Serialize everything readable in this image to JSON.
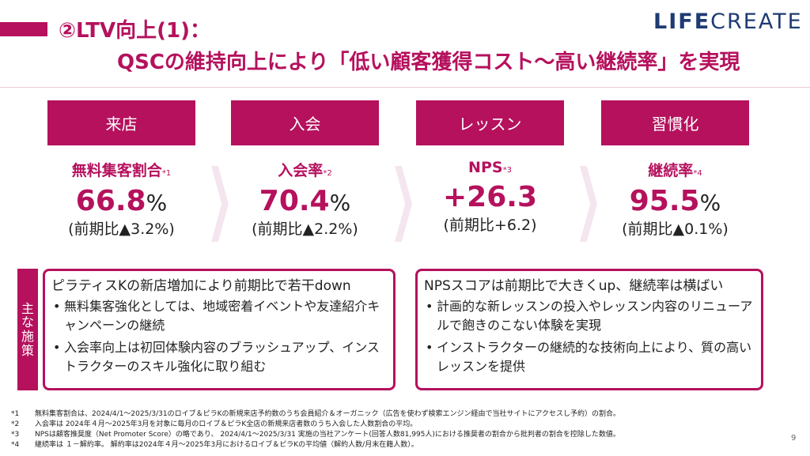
{
  "header": {
    "title_line1": "②LTV向上(1)：",
    "title_line2": "QSCの維持向上により「低い顧客獲得コスト〜高い継続率」を実現",
    "logo_bold": "LIFE",
    "logo_thin": "CREATE"
  },
  "stages": [
    {
      "head": "来店",
      "metric": "無料集客割合",
      "note": "*1",
      "value": "66.8",
      "unit": "%",
      "change": "(前期比▲3.2%)"
    },
    {
      "head": "入会",
      "metric": "入会率",
      "note": "*2",
      "value": "70.4",
      "unit": "%",
      "change": "(前期比▲2.2%)"
    },
    {
      "head": "レッスン",
      "metric": "NPS",
      "note": "*3",
      "value": "+26.3",
      "unit": "",
      "change": "(前期比+6.2)"
    },
    {
      "head": "習慣化",
      "metric": "継続率",
      "note": "*4",
      "value": "95.5",
      "unit": "%",
      "change": "(前期比▲0.1%)"
    }
  ],
  "measures": {
    "label_chars": [
      "主",
      "な",
      "施",
      "策"
    ],
    "left": {
      "title": "ピラティスKの新店増加により前期比で若干down",
      "bullets": [
        "無料集客強化としては、地域密着イベントや友達紹介キャンペーンの継続",
        "入会率向上は初回体験内容のブラッシュアップ、インストラクターのスキル強化に取り組む"
      ]
    },
    "right": {
      "title": "NPSスコアは前期比で大きくup、継続率は横ばい",
      "bullets": [
        "計画的な新レッスンの投入やレッスン内容のリニューアルで飽きのこない体験を実現",
        "インストラクターの継続的な技術向上により、質の高いレッスンを提供"
      ]
    },
    "bullet_mark": "•"
  },
  "footnotes": [
    {
      "mark": "*1",
      "text": "無料集客割合は、2024/4/1〜2025/3/31のロイブ＆ピラKの新規来店予約数のうち会員紹介＆オーガニック（広告を使わず検索エンジン経由で当社サイトにアクセスし予約）の割合。"
    },
    {
      "mark": "*2",
      "text": "入会率は 2024年４月〜2025年3月を対象に毎月のロイブ＆ピラK全店の新規来店者数のうち入会した人数割合の平均。"
    },
    {
      "mark": "*3",
      "text": "NPSは顧客推奨度（Net Promoter Score）の略であり、 2024/4/1〜2025/3/31 実施の当社アンケート(回答人数81,995人)における推奨者の割合から批判者の割合を控除した数値。"
    },
    {
      "mark": "*4",
      "text": "継続率は １－解約率。 解約率は2024年４月〜2025年3月におけるロイブ＆ピラKの平均値（解約人数/月末在籍人数）。"
    }
  ],
  "page_number": "9",
  "colors": {
    "accent": "#b5115d",
    "chevron": "#f4e6ee",
    "logo": "#1f3b73"
  }
}
